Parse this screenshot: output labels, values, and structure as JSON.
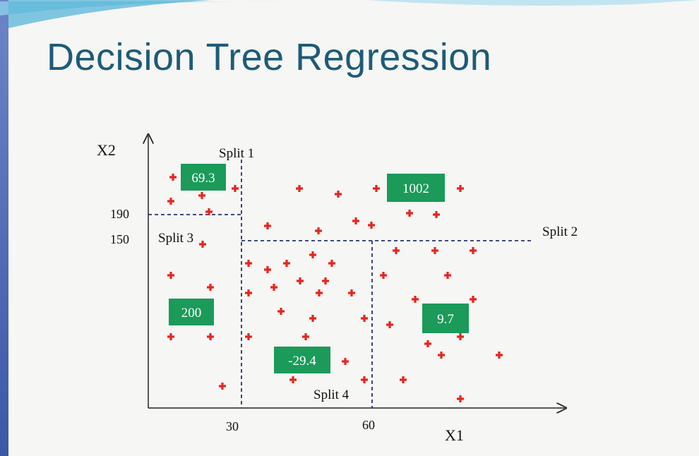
{
  "slide": {
    "title": "Decision Tree Regression"
  },
  "axes": {
    "y_label": "X2",
    "x_label": "X1"
  },
  "ticks": {
    "y_190": "190",
    "y_150": "150",
    "x_30": "30",
    "x_60": "60"
  },
  "splits": {
    "s1": "Split 1",
    "s2": "Split 2",
    "s3": "Split 3",
    "s4": "Split 4"
  },
  "leaves": {
    "top_left": "69.3",
    "top_right": "1002",
    "left": "200",
    "mid": "-29.4",
    "right": "9.7"
  },
  "colors": {
    "point": "#e5261e",
    "leaf_bg": "#1b9a5a",
    "leaf_text": "#ffffff",
    "split_line": "#28336e",
    "axis": "#222222"
  }
}
